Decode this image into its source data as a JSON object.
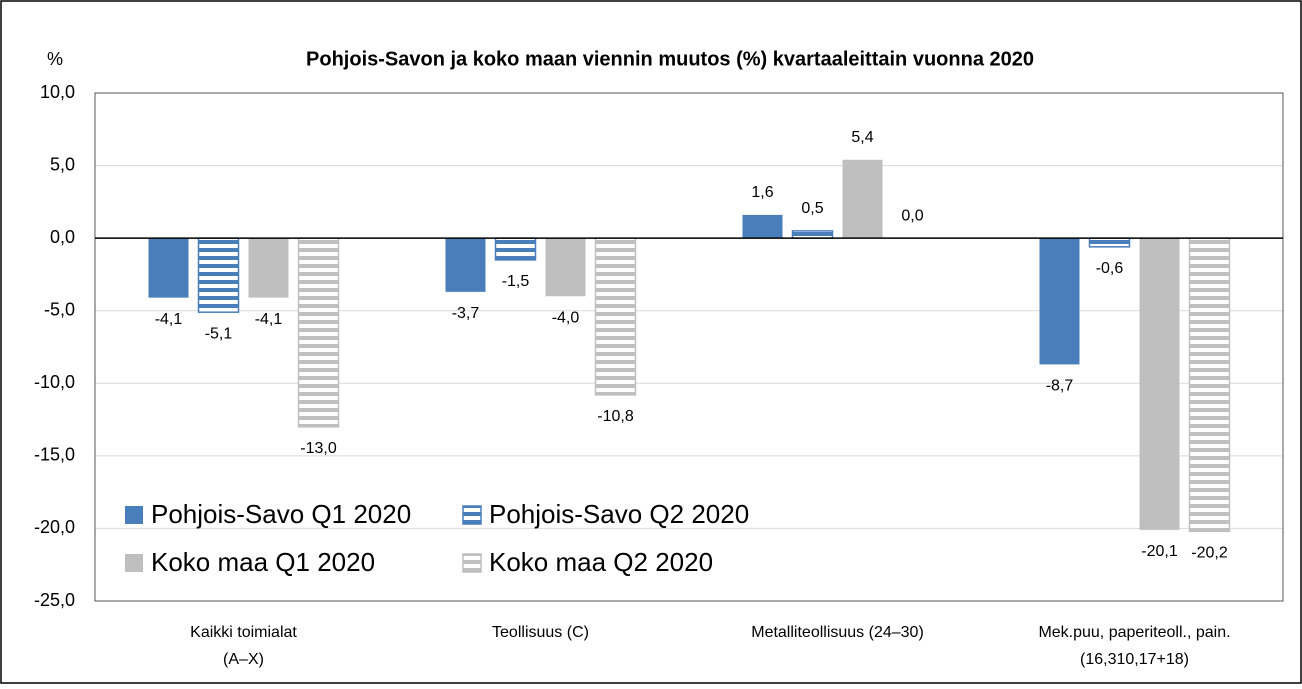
{
  "chart_data": {
    "type": "bar",
    "title": "Pohjois-Savon ja koko maan viennin muutos (%) kvartaaleittain vuonna 2020",
    "y_label": "%",
    "categories": [
      "Kaikki toimialat\n(A–X)",
      "Teollisuus (C)",
      "Metalliteollisuus (24–30)",
      "Mek.puu, paperiteoll., pain.\n(16,310,17+18)"
    ],
    "series": [
      {
        "name": "Pohjois-Savo Q1 2020",
        "color": "#4a7ebb",
        "pattern": "solid",
        "values": [
          -4.1,
          -3.7,
          1.6,
          -8.7
        ],
        "value_labels": [
          "-4,1",
          "-3,7",
          "1,6",
          "-8,7"
        ]
      },
      {
        "name": "Pohjois-Savo Q2 2020",
        "color": "#4a7ebb",
        "pattern": "horizontal-stripes",
        "values": [
          -5.1,
          -1.5,
          0.5,
          -0.6
        ],
        "value_labels": [
          "-5,1",
          "-1,5",
          "0,5",
          "-0,6"
        ]
      },
      {
        "name": "Koko maa Q1 2020",
        "color": "#bfbfbf",
        "pattern": "solid",
        "values": [
          -4.1,
          -4.0,
          5.4,
          -20.1
        ],
        "value_labels": [
          "-4,1",
          "-4,0",
          "5,4",
          "-20,1"
        ]
      },
      {
        "name": "Koko maa Q2 2020",
        "color": "#bfbfbf",
        "pattern": "horizontal-stripes",
        "values": [
          -13.0,
          -10.8,
          0.0,
          -20.2
        ],
        "value_labels": [
          "-13,0",
          "-10,8",
          "0,0",
          "-20,2"
        ]
      }
    ],
    "ylim": [
      -25,
      10
    ],
    "yticks": [
      {
        "value": -25,
        "label": "-25,0"
      },
      {
        "value": -20,
        "label": "-20,0"
      },
      {
        "value": -15,
        "label": "-15,0"
      },
      {
        "value": -10,
        "label": "-10,0"
      },
      {
        "value": -5,
        "label": "-5,0"
      },
      {
        "value": 0,
        "label": "0,0"
      },
      {
        "value": 5,
        "label": "5,0"
      },
      {
        "value": 10,
        "label": "10,0"
      }
    ],
    "grid": true,
    "legend": "lower left"
  }
}
